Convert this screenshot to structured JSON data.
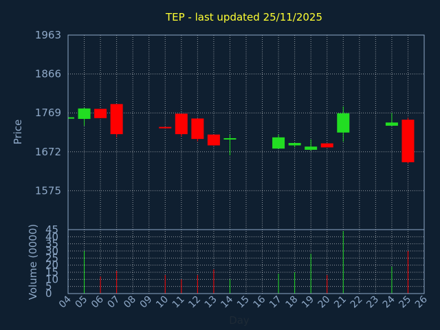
{
  "chart_data": {
    "type": "candlestick",
    "title": "TEP - last updated 25/11/2025",
    "price_panel": {
      "ylabel": "Price",
      "ylim": [
        1478,
        1963
      ],
      "yticks": [
        "1963",
        "1866",
        "1769",
        "1672",
        "1575"
      ]
    },
    "volume_panel": {
      "ylabel": "Volume (0000)",
      "ylim": [
        0,
        45
      ],
      "yticks": [
        "45",
        "40",
        "35",
        "30",
        "25",
        "20",
        "15",
        "10",
        "5",
        "0"
      ]
    },
    "xlabel": "Day",
    "xticks": [
      "04",
      "05",
      "06",
      "07",
      "08",
      "09",
      "10",
      "11",
      "12",
      "13",
      "14",
      "15",
      "16",
      "17",
      "18",
      "19",
      "20",
      "21",
      "22",
      "23",
      "24",
      "25",
      "26"
    ],
    "colors": {
      "up": "#22dd22",
      "down": "#ff0000",
      "background": "#0f1f30",
      "grid": "#ffffff",
      "axis": "#8fa9c8",
      "title": "#ffff33"
    },
    "candles": [
      {
        "day": "04",
        "open": 1758,
        "high": 1758,
        "low": 1758,
        "close": 1758,
        "volume": 0
      },
      {
        "day": "05",
        "open": 1754,
        "high": 1782,
        "low": 1737,
        "close": 1780,
        "volume": 30
      },
      {
        "day": "06",
        "open": 1779,
        "high": 1779,
        "low": 1756,
        "close": 1756,
        "volume": 12
      },
      {
        "day": "07",
        "open": 1791,
        "high": 1791,
        "low": 1708,
        "close": 1716,
        "volume": 16
      },
      {
        "day": "10",
        "open": 1734,
        "high": 1734,
        "low": 1731,
        "close": 1733,
        "volume": 13
      },
      {
        "day": "11",
        "open": 1767,
        "high": 1767,
        "low": 1710,
        "close": 1716,
        "volume": 10
      },
      {
        "day": "12",
        "open": 1755,
        "high": 1755,
        "low": 1698,
        "close": 1704,
        "volume": 13
      },
      {
        "day": "13",
        "open": 1715,
        "high": 1715,
        "low": 1687,
        "close": 1688,
        "volume": 17
      },
      {
        "day": "14",
        "open": 1703,
        "high": 1715,
        "low": 1663,
        "close": 1706,
        "volume": 10
      },
      {
        "day": "17",
        "open": 1680,
        "high": 1715,
        "low": 1680,
        "close": 1708,
        "volume": 14
      },
      {
        "day": "18",
        "open": 1688,
        "high": 1694,
        "low": 1683,
        "close": 1694,
        "volume": 15
      },
      {
        "day": "19",
        "open": 1677,
        "high": 1703,
        "low": 1675,
        "close": 1685,
        "volume": 28
      },
      {
        "day": "20",
        "open": 1693,
        "high": 1693,
        "low": 1683,
        "close": 1683,
        "volume": 13
      },
      {
        "day": "21",
        "open": 1720,
        "high": 1785,
        "low": 1697,
        "close": 1768,
        "volume": 44
      },
      {
        "day": "24",
        "open": 1737,
        "high": 1769,
        "low": 1737,
        "close": 1745,
        "volume": 19
      },
      {
        "day": "25",
        "open": 1752,
        "high": 1757,
        "low": 1643,
        "close": 1646,
        "volume": 30
      }
    ]
  }
}
